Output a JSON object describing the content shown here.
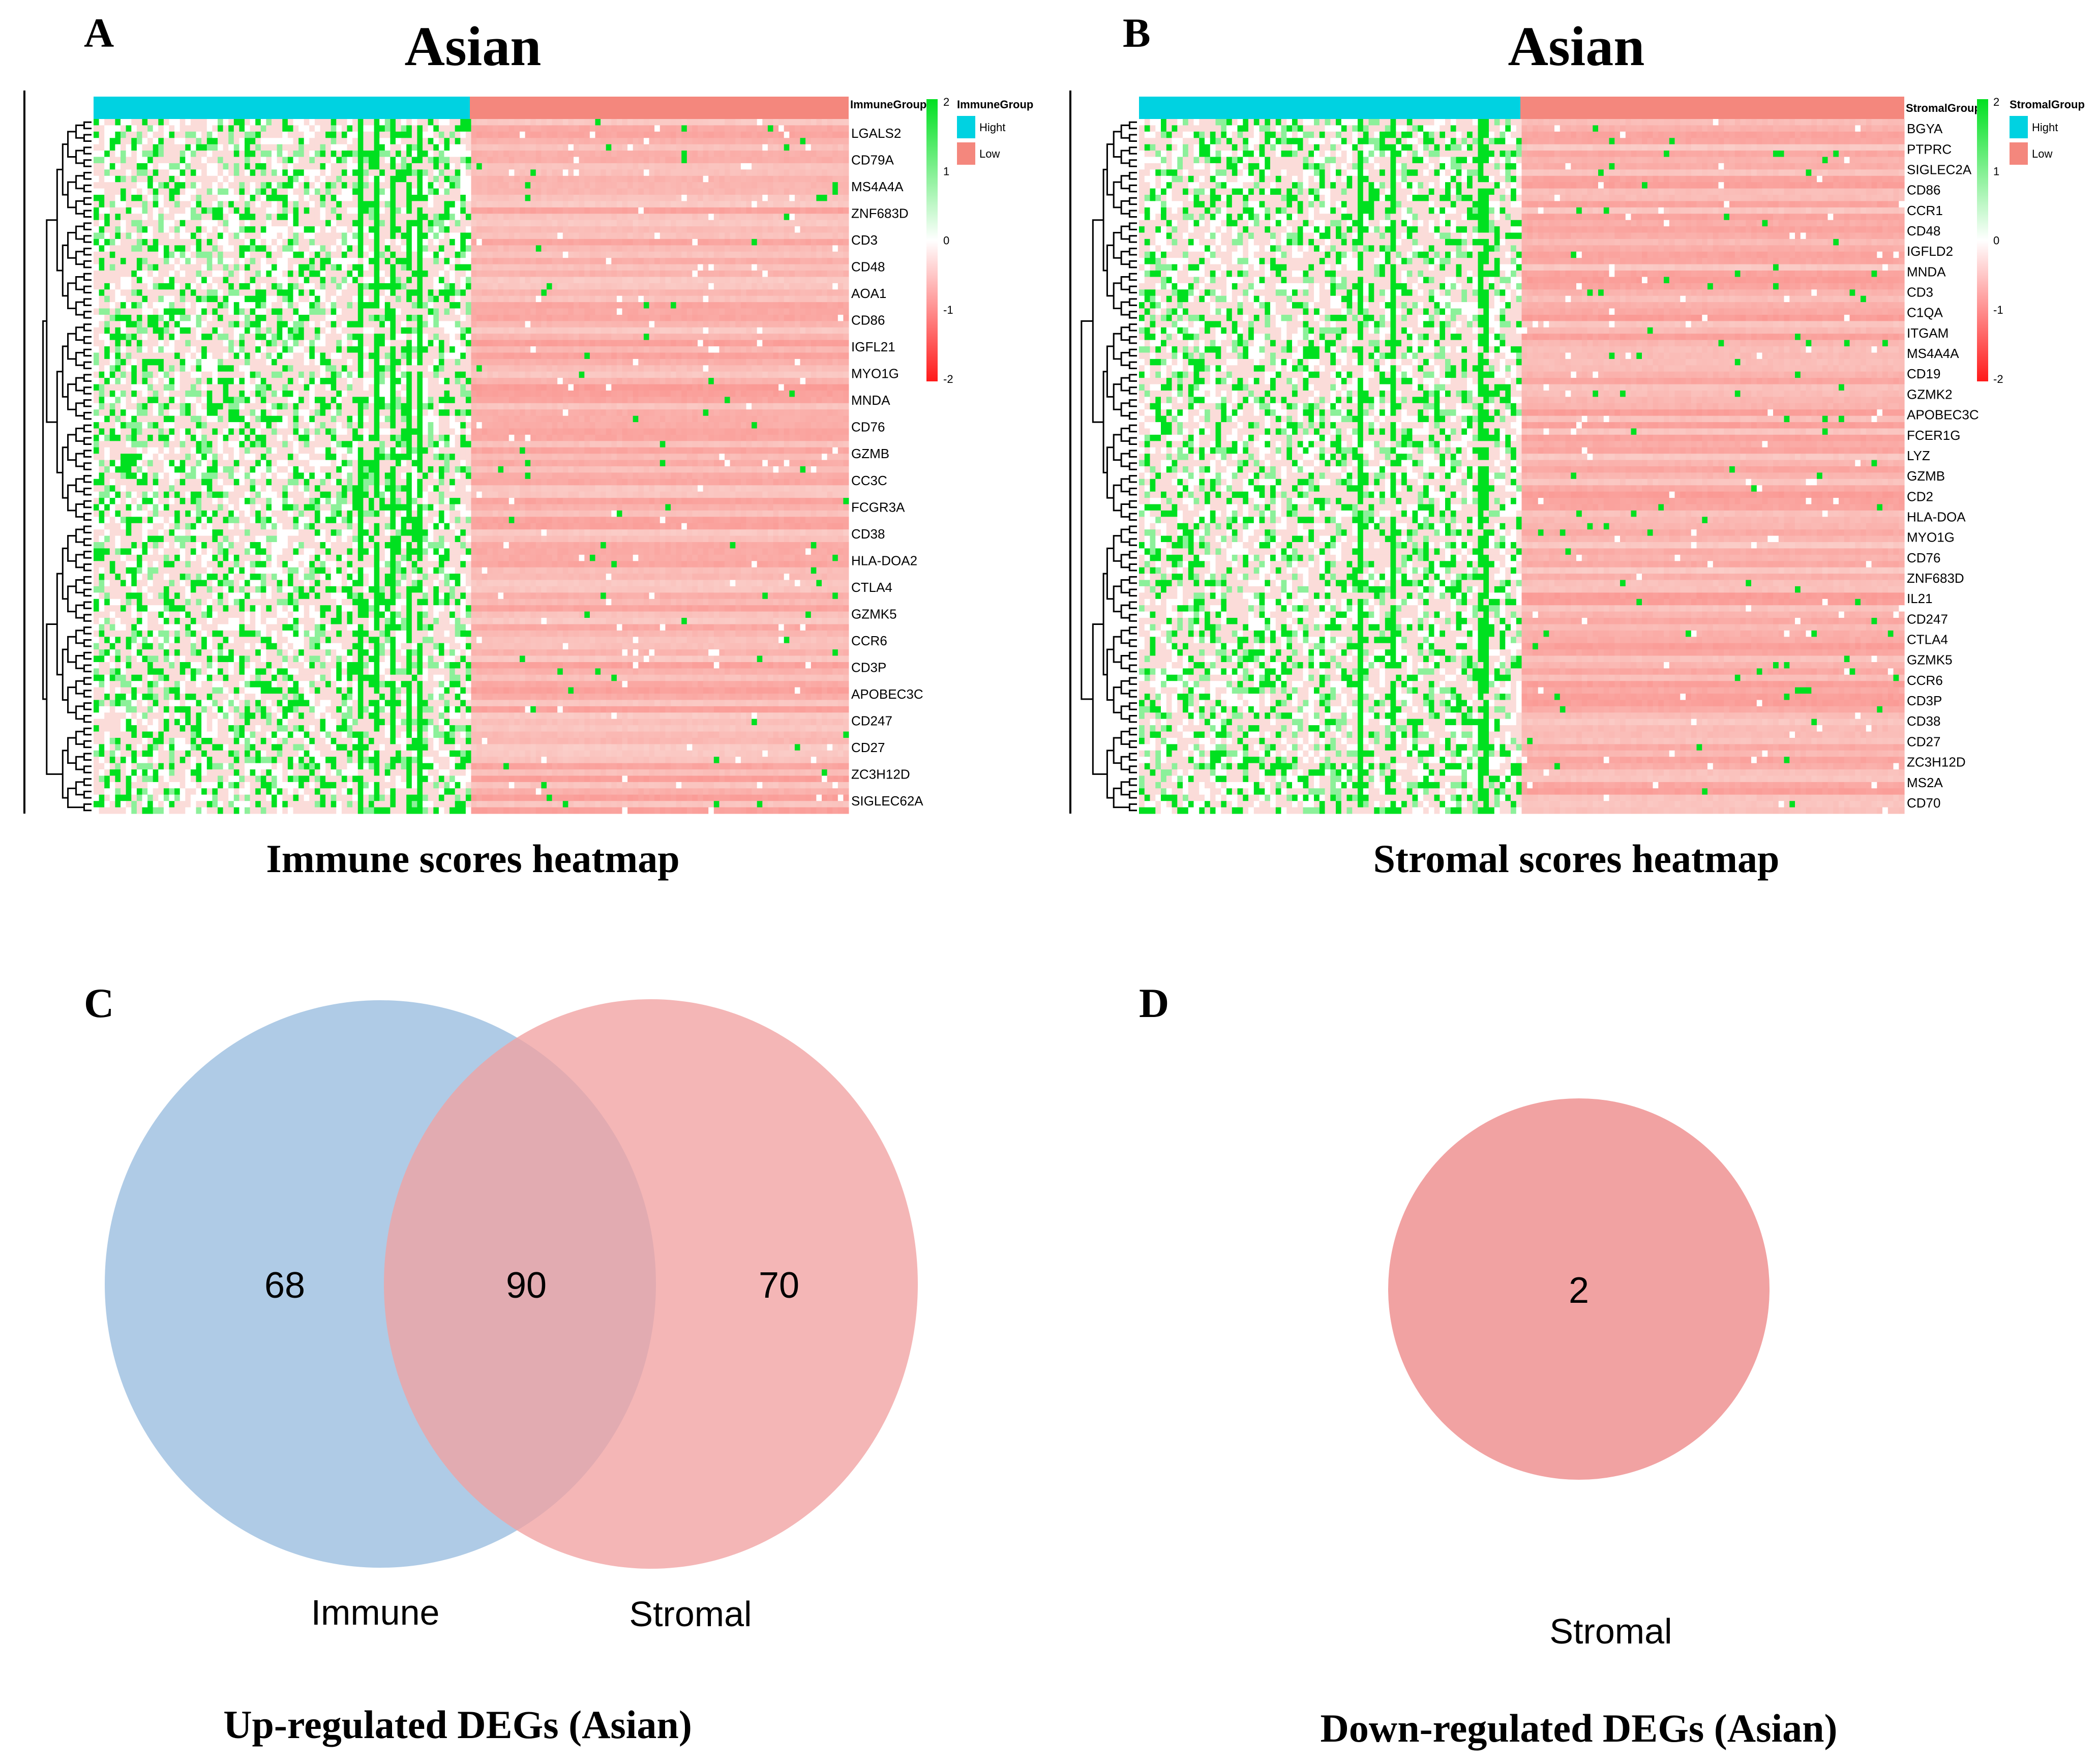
{
  "chart_data": [
    {
      "type": "heatmap",
      "panel_label": "A",
      "title": "Asian",
      "caption": "Immune scores heatmap",
      "group_title": "ImmuneGroup",
      "groups": [
        {
          "name": "Hight",
          "color": "#00d2e1"
        },
        {
          "name": "Low",
          "color": "#f4877d"
        }
      ],
      "color_scale": {
        "min": -2,
        "max": 2,
        "ticks": [
          2,
          1,
          0,
          -1,
          -2
        ],
        "low_color": "#ff1a1a",
        "mid_color": "#ffffff",
        "high_color": "#00e020"
      },
      "visible_row_labels": [
        "LGALS2",
        "CD79A",
        "MS4A4A",
        "ZNF683D",
        "CD3",
        "CD48",
        "AOA1",
        "CD86",
        "IGFL21",
        "MYO1G",
        "MNDA",
        "CD76",
        "GZMB",
        "CC3C",
        "FCGR3A",
        "CD38",
        "HLA-DOA2",
        "CTLA4",
        "GZMK5",
        "CCR6",
        "CD3P",
        "APOBEC3C",
        "CD247",
        "CD27",
        "ZC3H12D",
        "SIGLEC62A"
      ]
    },
    {
      "type": "heatmap",
      "panel_label": "B",
      "title": "Asian",
      "caption": "Stromal scores heatmap",
      "group_title": "StromalGroup",
      "groups": [
        {
          "name": "Hight",
          "color": "#00d2e1"
        },
        {
          "name": "Low",
          "color": "#f4877d"
        }
      ],
      "color_scale": {
        "min": -2,
        "max": 2,
        "ticks": [
          2,
          1,
          0,
          -1,
          -2
        ],
        "low_color": "#ff1a1a",
        "mid_color": "#ffffff",
        "high_color": "#00e020"
      },
      "visible_row_labels": [
        "BGYA",
        "PTPRC",
        "SIGLEC2A",
        "CD86",
        "CCR1",
        "CD48",
        "IGFLD2",
        "MNDA",
        "CD3",
        "C1QA",
        "ITGAM",
        "MS4A4A",
        "CD19",
        "GZMK2",
        "APOBEC3C",
        "FCER1G",
        "LYZ",
        "GZMB",
        "CD2",
        "HLA-DOA",
        "MYO1G",
        "CD76",
        "ZNF683D",
        "IL21",
        "CD247",
        "CTLA4",
        "GZMK5",
        "CCR6",
        "CD3P",
        "CD38",
        "CD27",
        "ZC3H12D",
        "MS2A",
        "CD70"
      ]
    },
    {
      "type": "venn",
      "panel_label": "C",
      "caption": "Up-regulated DEGs (Asian)",
      "sets": [
        {
          "name": "Immune",
          "color": "#9ec0e0"
        },
        {
          "name": "Stromal",
          "color": "#f1a2a2"
        }
      ],
      "regions": [
        {
          "sets": [
            "Immune"
          ],
          "value": 68
        },
        {
          "sets": [
            "Immune",
            "Stromal"
          ],
          "value": 90
        },
        {
          "sets": [
            "Stromal"
          ],
          "value": 70
        }
      ]
    },
    {
      "type": "venn",
      "panel_label": "D",
      "caption": "Down-regulated DEGs (Asian)",
      "sets": [
        {
          "name": "Stromal",
          "color": "#f1a2a2"
        }
      ],
      "regions": [
        {
          "sets": [
            "Stromal"
          ],
          "value": 2
        }
      ]
    }
  ]
}
